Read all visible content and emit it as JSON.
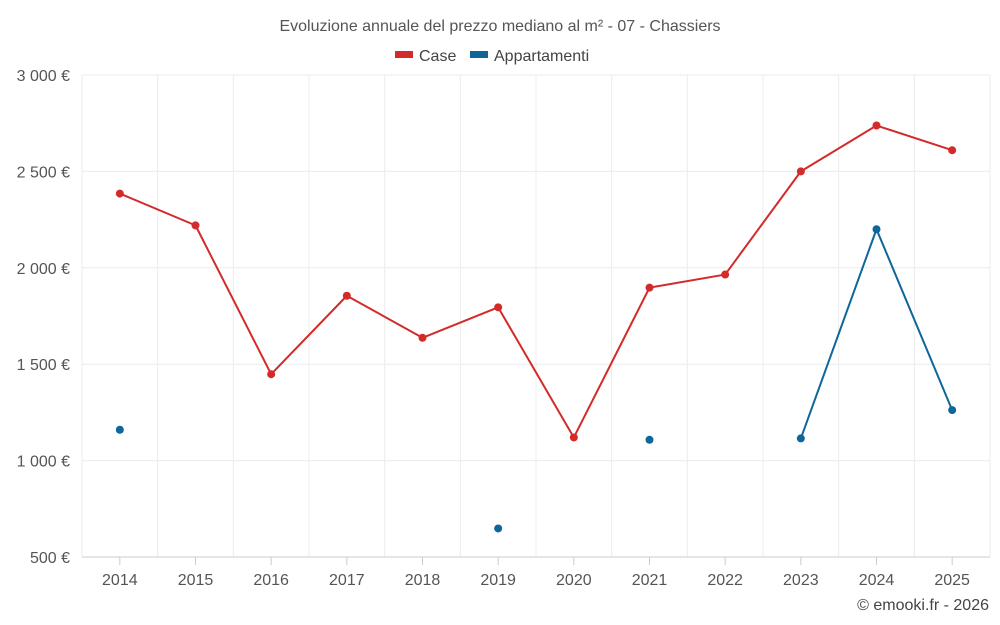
{
  "chart_data": {
    "type": "line",
    "title": "Evoluzione annuale del prezzo mediano al m² - 07 - Chassiers",
    "categories": [
      "2014",
      "2015",
      "2016",
      "2017",
      "2018",
      "2019",
      "2020",
      "2021",
      "2022",
      "2023",
      "2024",
      "2025"
    ],
    "ylim": [
      500,
      3000
    ],
    "yticks": [
      500,
      1000,
      1500,
      2000,
      2500,
      3000
    ],
    "ytick_labels": [
      "500 €",
      "1 000 €",
      "1 500 €",
      "2 000 €",
      "2 500 €",
      "3 000 €"
    ],
    "series": [
      {
        "name": "Case",
        "color": "#d32a2a",
        "values": [
          2385,
          2220,
          1448,
          1855,
          1637,
          1795,
          1120,
          1897,
          1965,
          2500,
          2738,
          2610
        ]
      },
      {
        "name": "Appartamenti",
        "color": "#0e6699",
        "values": [
          1160,
          null,
          null,
          null,
          null,
          648,
          null,
          1108,
          null,
          1115,
          2200,
          1262
        ]
      }
    ],
    "grid": true,
    "legend": "top-center"
  },
  "credit": "© emooki.fr - 2026"
}
